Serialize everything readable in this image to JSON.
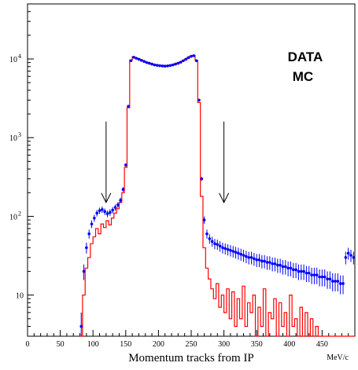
{
  "chart_data": {
    "type": "histogram",
    "title": "",
    "xlabel": "Momentum tracks from IP",
    "x_unit": "MeV/c",
    "ylabel": "",
    "x_range": [
      0,
      500
    ],
    "y_range": [
      3,
      50000
    ],
    "y_scale": "log",
    "grid": false,
    "legend_position": "top-right",
    "x_ticks": [
      0,
      50,
      100,
      150,
      200,
      250,
      300,
      350,
      400,
      450
    ],
    "y_ticks": [
      {
        "value": 10,
        "base": "10",
        "exp": ""
      },
      {
        "value": 100,
        "base": "10",
        "exp": "2"
      },
      {
        "value": 1000,
        "base": "10",
        "exp": "3"
      },
      {
        "value": 10000,
        "base": "10",
        "exp": "4"
      }
    ],
    "arrows_at_x": [
      120,
      300
    ],
    "series": [
      {
        "name": "DATA",
        "color": "#0000ff",
        "style": "points-with-errors",
        "x": [
          82,
          86,
          90,
          94,
          98,
          102,
          106,
          110,
          114,
          118,
          122,
          126,
          130,
          134,
          138,
          142,
          146,
          150,
          154,
          158,
          162,
          166,
          170,
          174,
          178,
          182,
          186,
          190,
          194,
          198,
          202,
          206,
          210,
          214,
          218,
          222,
          226,
          230,
          234,
          238,
          242,
          246,
          250,
          254,
          258,
          262,
          266,
          270,
          274,
          278,
          282,
          286,
          290,
          294,
          298,
          302,
          306,
          310,
          314,
          318,
          322,
          326,
          330,
          334,
          338,
          342,
          346,
          350,
          354,
          358,
          362,
          366,
          370,
          374,
          378,
          382,
          386,
          390,
          394,
          398,
          402,
          406,
          410,
          414,
          418,
          422,
          426,
          430,
          434,
          438,
          442,
          446,
          450,
          454,
          458,
          462,
          466,
          470,
          474,
          478,
          482,
          486,
          490,
          494,
          498
        ],
        "y": [
          4,
          20,
          40,
          60,
          80,
          95,
          110,
          118,
          122,
          115,
          108,
          112,
          120,
          130,
          140,
          160,
          220,
          450,
          2500,
          9500,
          10500,
          10200,
          9900,
          9600,
          9300,
          9000,
          8800,
          8600,
          8400,
          8300,
          8200,
          8150,
          8100,
          8150,
          8250,
          8400,
          8600,
          8800,
          9100,
          9500,
          9900,
          10400,
          10800,
          11000,
          9500,
          3000,
          300,
          90,
          60,
          52,
          48,
          45,
          44,
          42,
          40,
          39,
          38,
          37,
          36,
          35,
          34,
          33,
          32,
          31,
          30,
          30,
          29,
          28,
          28,
          27,
          27,
          26,
          26,
          25,
          25,
          24,
          24,
          23,
          23,
          22,
          22,
          21,
          21,
          20,
          20,
          20,
          19,
          19,
          18,
          18,
          18,
          17,
          17,
          17,
          16,
          16,
          15,
          15,
          15,
          14,
          14,
          30,
          34,
          32,
          30
        ]
      },
      {
        "name": "MC",
        "color": "#ff0000",
        "style": "step",
        "x": [
          82,
          86,
          90,
          94,
          98,
          102,
          106,
          110,
          114,
          118,
          122,
          126,
          130,
          134,
          138,
          142,
          146,
          150,
          154,
          158,
          162,
          166,
          170,
          174,
          178,
          182,
          186,
          190,
          194,
          198,
          202,
          206,
          210,
          214,
          218,
          222,
          226,
          230,
          234,
          238,
          242,
          246,
          250,
          254,
          258,
          262,
          266,
          270,
          274,
          278,
          282,
          286,
          290,
          294,
          298,
          302,
          306,
          310,
          314,
          318,
          322,
          326,
          330,
          334,
          338,
          342,
          346,
          350,
          354,
          358,
          362,
          366,
          370,
          374,
          378,
          382,
          386,
          390,
          394,
          398,
          402,
          406,
          410,
          414,
          418,
          422,
          426,
          430,
          434,
          438,
          442,
          446,
          450,
          454,
          458,
          462,
          466,
          470,
          474,
          478,
          482,
          486,
          490,
          494,
          498
        ],
        "y": [
          2,
          10,
          22,
          30,
          45,
          55,
          70,
          60,
          80,
          72,
          88,
          78,
          95,
          110,
          125,
          150,
          200,
          420,
          2400,
          9700,
          10700,
          10300,
          10000,
          9700,
          9400,
          9100,
          8900,
          8700,
          8500,
          8400,
          8300,
          8250,
          8200,
          8250,
          8350,
          8500,
          8700,
          8900,
          9200,
          9600,
          10000,
          10500,
          10900,
          11100,
          9600,
          2800,
          180,
          40,
          22,
          16,
          12,
          9,
          14,
          7,
          10,
          6,
          12,
          5,
          11,
          4,
          9,
          5,
          13,
          4,
          8,
          6,
          10,
          3,
          7,
          4,
          12,
          3,
          6,
          5,
          9,
          3,
          8,
          4,
          6,
          3,
          10,
          4,
          5,
          3,
          7,
          2,
          6,
          3,
          5,
          2,
          4,
          3,
          2,
          3,
          2,
          3,
          2,
          2,
          2,
          2,
          2,
          2,
          2,
          2,
          2
        ]
      }
    ]
  }
}
